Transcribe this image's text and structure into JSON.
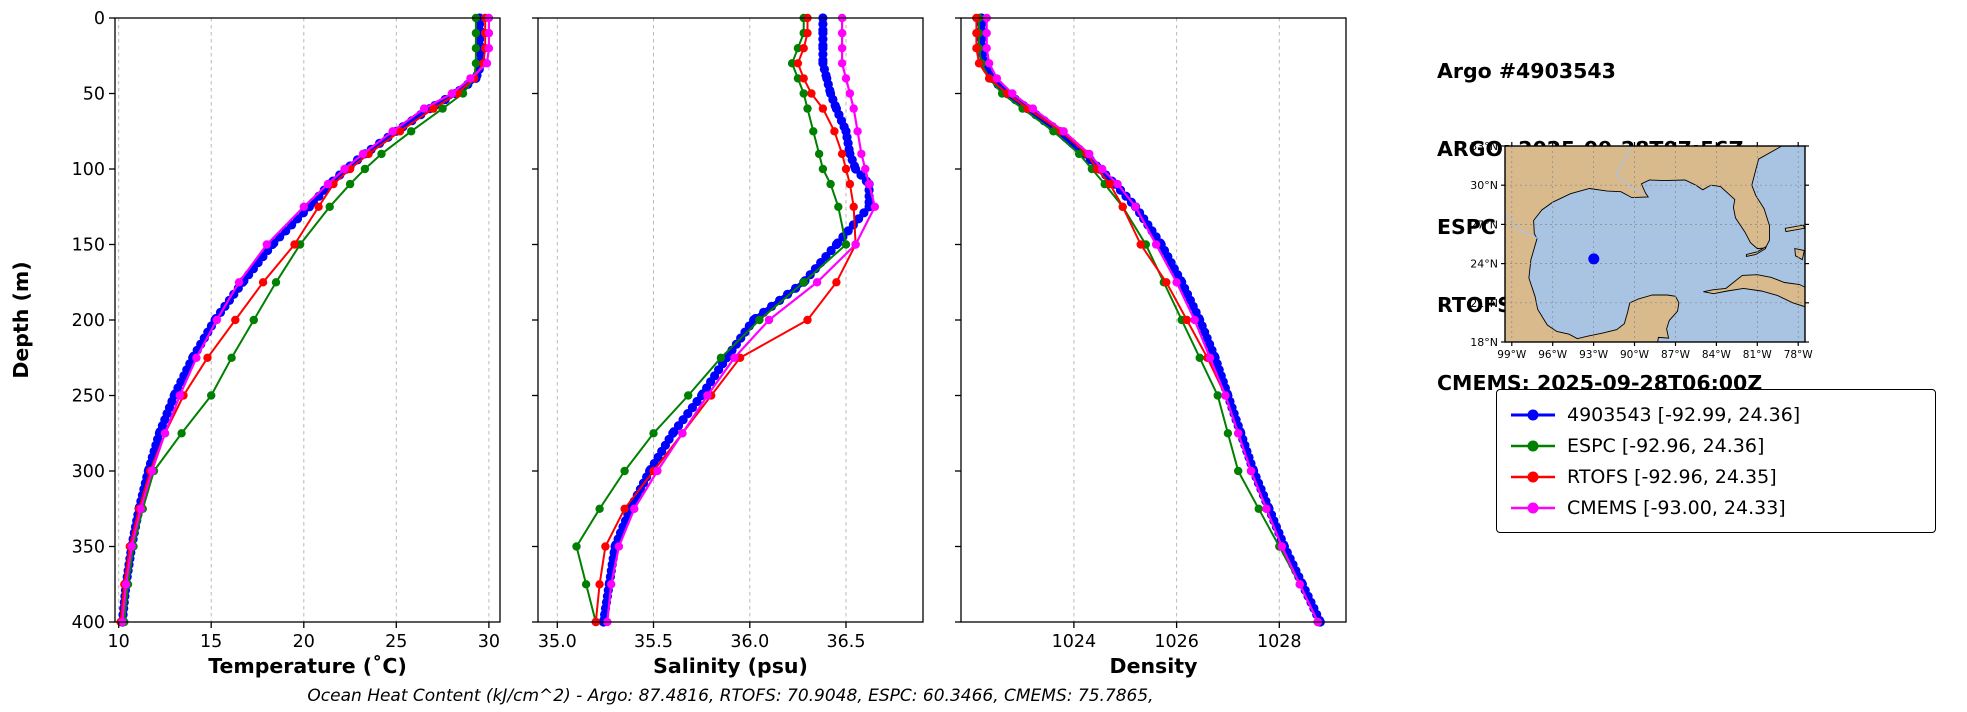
{
  "header": {
    "lines": [
      "Argo #4903543",
      "ARGO: 2025-09-28T07:56Z",
      "ESPC : 2025-09-28T09:00Z",
      "RTOFS: 2025-09-28T06:00Z",
      "CMEMS: 2025-09-28T06:00Z"
    ]
  },
  "caption": "Ocean Heat Content (kJ/cm^2) - Argo: 87.4816,  RTOFS: 70.9048,  ESPC: 60.3466,  CMEMS: 75.7865,",
  "legend": {
    "items": [
      {
        "label": "4903543 [-92.99, 24.36]",
        "color": "#0000ff"
      },
      {
        "label": "ESPC [-92.96, 24.36]",
        "color": "#008000"
      },
      {
        "label": "RTOFS [-92.96, 24.35]",
        "color": "#ff0000"
      },
      {
        "label": "CMEMS [-93.00, 24.33]",
        "color": "#ff00ff"
      }
    ]
  },
  "map": {
    "extent": {
      "lon_min": -99.5,
      "lon_max": -77.5,
      "lat_min": 18,
      "lat_max": 33
    },
    "lon_ticks": [
      {
        "v": -99,
        "label": "99°W"
      },
      {
        "v": -96,
        "label": "96°W"
      },
      {
        "v": -93,
        "label": "93°W"
      },
      {
        "v": -90,
        "label": "90°W"
      },
      {
        "v": -87,
        "label": "87°W"
      },
      {
        "v": -84,
        "label": "84°W"
      },
      {
        "v": -81,
        "label": "81°W"
      },
      {
        "v": -78,
        "label": "78°W"
      }
    ],
    "lat_ticks": [
      {
        "v": 33,
        "label": "33°N"
      },
      {
        "v": 30,
        "label": "30°N"
      },
      {
        "v": 27,
        "label": "27°N"
      },
      {
        "v": 24,
        "label": "24°N"
      },
      {
        "v": 21,
        "label": "21°N"
      },
      {
        "v": 18,
        "label": "18°N"
      }
    ],
    "point": {
      "lon": -92.99,
      "lat": 24.36,
      "color": "#0000ff"
    },
    "land_color": "#d9ba8c",
    "water_color": "#a9c4e3",
    "coast_color": "#000000",
    "river_color": "#a9c4e3"
  },
  "chart_data": [
    {
      "type": "line",
      "title": "",
      "xlabel": "Temperature (˚C)",
      "ylabel": "Depth (m)",
      "xlim": [
        9.8,
        30.6
      ],
      "ylim": [
        0,
        400
      ],
      "grid": "vertical-dashed",
      "xticks": [
        10,
        15,
        20,
        25,
        30
      ],
      "xtick_labels": [
        "10",
        "15",
        "20",
        "25",
        "30"
      ],
      "yticks": [
        0,
        50,
        100,
        150,
        200,
        250,
        300,
        350,
        400
      ],
      "y_depths": [
        0,
        10,
        20,
        30,
        40,
        50,
        60,
        75,
        90,
        100,
        110,
        125,
        150,
        175,
        200,
        225,
        250,
        275,
        300,
        325,
        350,
        375,
        400
      ],
      "series": [
        {
          "name": "4903543",
          "color": "#0000ff",
          "width": 5,
          "marker": 4.6,
          "dense": 4,
          "values": [
            29.5,
            29.5,
            29.5,
            29.6,
            29.3,
            28.2,
            26.8,
            25.0,
            23.3,
            22.3,
            21.4,
            20.3,
            18.3,
            16.7,
            15.2,
            14.0,
            13.0,
            12.2,
            11.6,
            11.1,
            10.7,
            10.4,
            10.2
          ]
        },
        {
          "name": "ESPC",
          "color": "#008000",
          "width": 2,
          "marker": 4.2,
          "dense": 0,
          "values": [
            29.3,
            29.3,
            29.3,
            29.3,
            29.2,
            28.6,
            27.5,
            25.8,
            24.2,
            23.3,
            22.5,
            21.4,
            19.8,
            18.5,
            17.3,
            16.1,
            15.0,
            13.4,
            11.9,
            11.3,
            10.8,
            10.5,
            10.3
          ]
        },
        {
          "name": "RTOFS",
          "color": "#ff0000",
          "width": 2,
          "marker": 4.2,
          "dense": 0,
          "values": [
            29.8,
            29.8,
            29.8,
            29.7,
            29.2,
            28.3,
            27.0,
            25.2,
            23.5,
            22.5,
            21.6,
            20.8,
            19.5,
            17.8,
            16.3,
            14.8,
            13.5,
            12.5,
            11.7,
            11.1,
            10.6,
            10.3,
            10.1
          ]
        },
        {
          "name": "CMEMS",
          "color": "#ff00ff",
          "width": 2.2,
          "marker": 4.2,
          "dense": 0,
          "values": [
            30.0,
            30.0,
            30.0,
            29.9,
            29.0,
            28.0,
            26.5,
            24.8,
            23.2,
            22.2,
            21.3,
            20.0,
            18.0,
            16.5,
            15.3,
            14.2,
            13.3,
            12.5,
            11.8,
            11.2,
            10.7,
            10.4,
            10.2
          ]
        }
      ]
    },
    {
      "type": "line",
      "title": "",
      "xlabel": "Salinity (psu)",
      "ylabel": "Depth (m)",
      "xlim": [
        34.9,
        36.9
      ],
      "ylim": [
        0,
        400
      ],
      "grid": "vertical-dashed",
      "xticks": [
        35.0,
        35.5,
        36.0,
        36.5
      ],
      "xtick_labels": [
        "35.0",
        "35.5",
        "36.0",
        "36.5"
      ],
      "yticks": [
        0,
        50,
        100,
        150,
        200,
        250,
        300,
        350,
        400
      ],
      "y_depths": [
        0,
        10,
        20,
        30,
        40,
        50,
        60,
        75,
        90,
        100,
        110,
        125,
        150,
        175,
        200,
        225,
        250,
        275,
        300,
        325,
        350,
        375,
        400
      ],
      "series": [
        {
          "name": "4903543",
          "color": "#0000ff",
          "width": 5,
          "marker": 4.6,
          "dense": 4,
          "values": [
            36.38,
            36.38,
            36.38,
            36.38,
            36.4,
            36.42,
            36.45,
            36.5,
            36.52,
            36.55,
            36.62,
            36.62,
            36.45,
            36.28,
            36.02,
            35.88,
            35.75,
            35.6,
            35.48,
            35.38,
            35.3,
            35.27,
            35.24
          ]
        },
        {
          "name": "ESPC",
          "color": "#008000",
          "width": 2,
          "marker": 4.2,
          "dense": 0,
          "values": [
            36.28,
            36.28,
            36.25,
            36.22,
            36.25,
            36.28,
            36.3,
            36.33,
            36.36,
            36.38,
            36.42,
            36.46,
            36.5,
            36.28,
            36.05,
            35.85,
            35.68,
            35.5,
            35.35,
            35.22,
            35.1,
            35.15,
            35.2
          ]
        },
        {
          "name": "RTOFS",
          "color": "#ff0000",
          "width": 2,
          "marker": 4.2,
          "dense": 0,
          "values": [
            36.3,
            36.3,
            36.28,
            36.25,
            36.28,
            36.32,
            36.38,
            36.44,
            36.48,
            36.5,
            36.52,
            36.54,
            36.55,
            36.45,
            36.3,
            35.95,
            35.8,
            35.65,
            35.5,
            35.35,
            35.25,
            35.22,
            35.2
          ]
        },
        {
          "name": "CMEMS",
          "color": "#ff00ff",
          "width": 2.2,
          "marker": 4.2,
          "dense": 0,
          "values": [
            36.48,
            36.48,
            36.48,
            36.48,
            36.5,
            36.52,
            36.54,
            36.56,
            36.58,
            36.6,
            36.62,
            36.65,
            36.55,
            36.35,
            36.1,
            35.92,
            35.78,
            35.65,
            35.52,
            35.4,
            35.32,
            35.28,
            35.26
          ]
        }
      ]
    },
    {
      "type": "line",
      "title": "",
      "xlabel": "Density",
      "ylabel": "Depth (m)",
      "xlim": [
        1021.8,
        1029.3
      ],
      "ylim": [
        0,
        400
      ],
      "grid": "vertical-dashed",
      "xticks": [
        1024,
        1026,
        1028
      ],
      "xtick_labels": [
        "1024",
        "1026",
        "1028"
      ],
      "yticks": [
        0,
        50,
        100,
        150,
        200,
        250,
        300,
        350,
        400
      ],
      "y_depths": [
        0,
        10,
        20,
        30,
        40,
        50,
        60,
        75,
        90,
        100,
        110,
        125,
        150,
        175,
        200,
        225,
        250,
        275,
        300,
        325,
        350,
        375,
        400
      ],
      "series": [
        {
          "name": "4903543",
          "color": "#0000ff",
          "width": 5,
          "marker": 4.6,
          "dense": 4,
          "values": [
            1022.2,
            1022.2,
            1022.2,
            1022.25,
            1022.4,
            1022.7,
            1023.1,
            1023.7,
            1024.2,
            1024.5,
            1024.8,
            1025.2,
            1025.7,
            1026.1,
            1026.45,
            1026.75,
            1027.0,
            1027.25,
            1027.5,
            1027.8,
            1028.1,
            1028.45,
            1028.8
          ]
        },
        {
          "name": "ESPC",
          "color": "#008000",
          "width": 2,
          "marker": 4.2,
          "dense": 0,
          "values": [
            1022.15,
            1022.15,
            1022.15,
            1022.2,
            1022.35,
            1022.6,
            1023.0,
            1023.6,
            1024.1,
            1024.35,
            1024.6,
            1024.95,
            1025.4,
            1025.75,
            1026.1,
            1026.45,
            1026.8,
            1027.0,
            1027.2,
            1027.6,
            1028.0,
            1028.4,
            1028.75
          ]
        },
        {
          "name": "RTOFS",
          "color": "#ff0000",
          "width": 2,
          "marker": 4.2,
          "dense": 0,
          "values": [
            1022.1,
            1022.1,
            1022.1,
            1022.15,
            1022.35,
            1022.7,
            1023.1,
            1023.75,
            1024.25,
            1024.45,
            1024.7,
            1024.95,
            1025.3,
            1025.8,
            1026.2,
            1026.6,
            1026.95,
            1027.2,
            1027.45,
            1027.75,
            1028.05,
            1028.4,
            1028.75
          ]
        },
        {
          "name": "CMEMS",
          "color": "#ff00ff",
          "width": 2.2,
          "marker": 4.2,
          "dense": 0,
          "values": [
            1022.3,
            1022.3,
            1022.3,
            1022.35,
            1022.5,
            1022.8,
            1023.2,
            1023.8,
            1024.3,
            1024.55,
            1024.85,
            1025.2,
            1025.6,
            1026.0,
            1026.35,
            1026.65,
            1026.95,
            1027.2,
            1027.45,
            1027.75,
            1028.05,
            1028.4,
            1028.75
          ]
        }
      ]
    }
  ]
}
